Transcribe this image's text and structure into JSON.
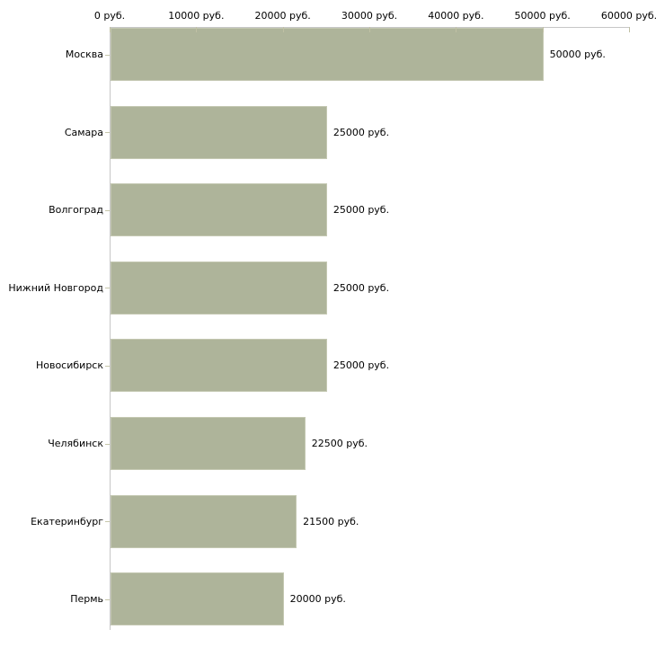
{
  "chart_data": {
    "type": "bar",
    "orientation": "horizontal",
    "title": "",
    "xlabel": "",
    "ylabel": "",
    "grid": false,
    "legend": false,
    "categories": [
      "Москва",
      "Самара",
      "Волгоград",
      "Нижний Новгород",
      "Новосибирск",
      "Челябинск",
      "Екатеринбург",
      "Пермь"
    ],
    "values": [
      50000,
      25000,
      25000,
      25000,
      25000,
      22500,
      21500,
      20000
    ],
    "value_labels": [
      "50000 руб.",
      "25000 руб.",
      "25000 руб.",
      "25000 руб.",
      "25000 руб.",
      "22500 руб.",
      "21500 руб.",
      "20000 руб."
    ],
    "unit": "руб.",
    "x_axis": {
      "position": "top",
      "min": 0,
      "max": 60000,
      "tick_values": [
        0,
        10000,
        20000,
        30000,
        40000,
        50000,
        60000
      ],
      "tick_labels": [
        "0 руб.",
        "10000 руб.",
        "20000 руб.",
        "30000 руб.",
        "40000 руб.",
        "50000 руб.",
        "60000 руб."
      ]
    },
    "colors": {
      "bar_fill": "#aeb49a",
      "bar_border": "#c4c8b2",
      "axis_line": "#c6c6c6",
      "tick_mark": "#c0c0a4",
      "text": "#000000",
      "background": "#ffffff"
    }
  }
}
